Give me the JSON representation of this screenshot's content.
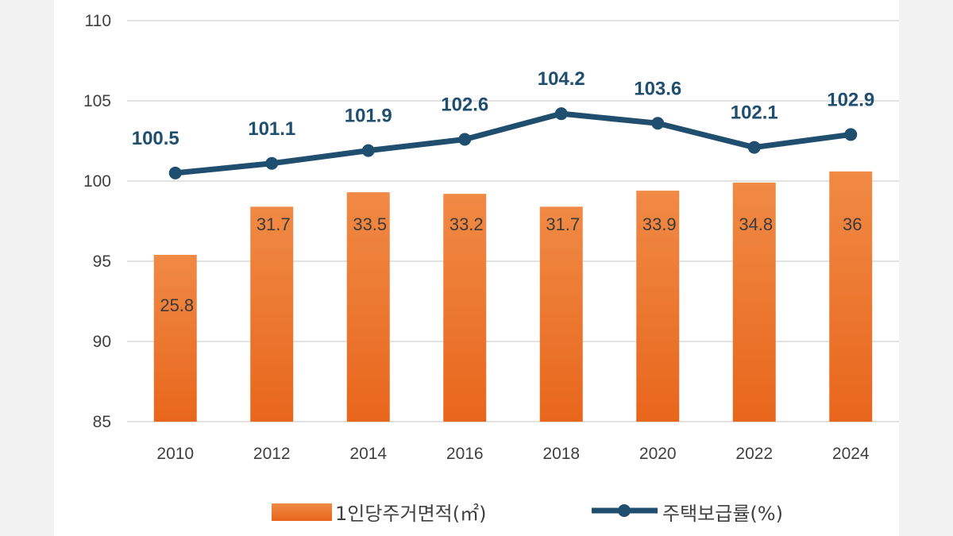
{
  "chart_data": {
    "type": "bar",
    "categories": [
      "2010",
      "2012",
      "2014",
      "2016",
      "2018",
      "2020",
      "2022",
      "2024"
    ],
    "y_ticks": [
      "110",
      "105",
      "100",
      "95",
      "90",
      "85"
    ],
    "ylim": [
      85,
      110
    ],
    "grid": true,
    "legend_position": "bottom",
    "series": [
      {
        "name": "1인당주거면적(㎡)",
        "type": "bar",
        "color": "#ed7d31",
        "value_labels": [
          "25.8",
          "31.7",
          "33.5",
          "33.2",
          "31.7",
          "33.9",
          "34.8",
          "36"
        ],
        "values": [
          25.8,
          31.7,
          33.5,
          33.2,
          31.7,
          33.9,
          34.8,
          36
        ],
        "bar_tops_on_left_axis": [
          95.4,
          98.4,
          99.3,
          99.2,
          98.4,
          99.4,
          99.9,
          100.6
        ]
      },
      {
        "name": "주택보급률(%)",
        "type": "line",
        "color": "#1f4e6e",
        "value_labels": [
          "100.5",
          "101.1",
          "101.9",
          "102.6",
          "104.2",
          "103.6",
          "102.1",
          "102.9"
        ],
        "values": [
          100.5,
          101.1,
          101.9,
          102.6,
          104.2,
          103.6,
          102.1,
          102.9
        ]
      }
    ]
  }
}
